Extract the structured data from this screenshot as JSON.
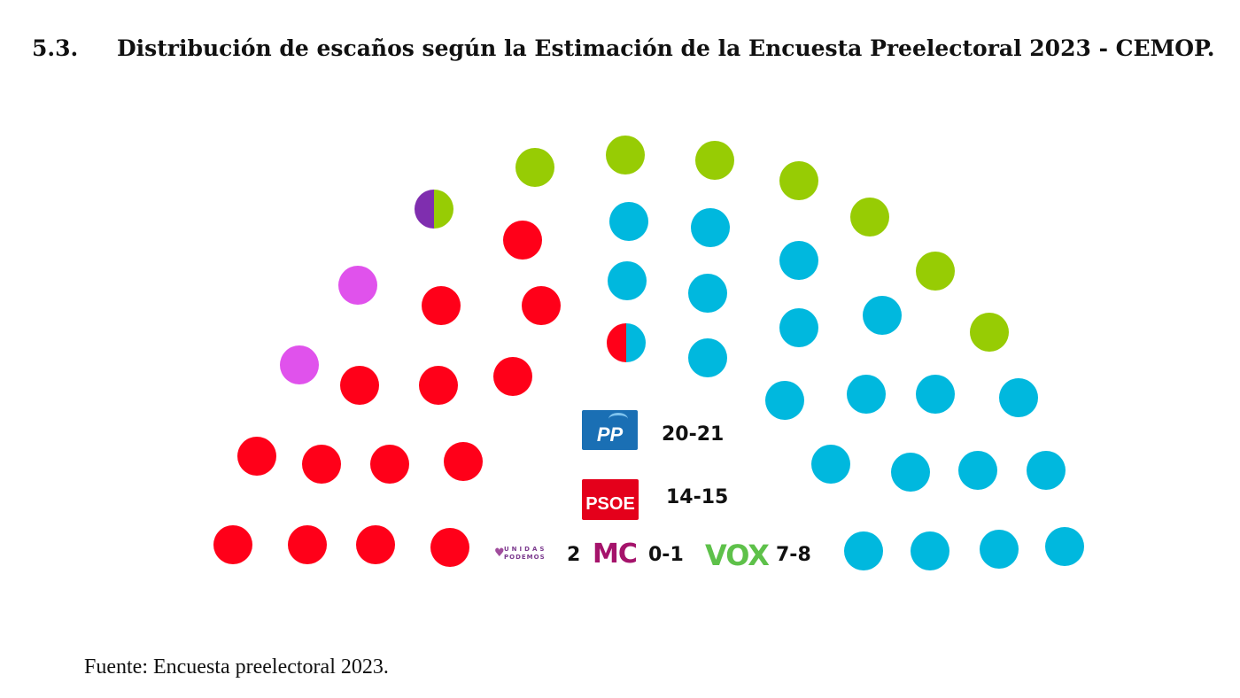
{
  "heading": {
    "number": "5.3.",
    "title": "Distribución de escaños según la Estimación de la Encuesta Preelectoral 2023 - CEMOP."
  },
  "source": "Fuente: Encuesta preelectoral 2023.",
  "colors": {
    "pp": "#00b8de",
    "psoe": "#ff0019",
    "vox": "#97cc04",
    "podemos": "#e052ec",
    "mc": "#7f2eaf"
  },
  "chart_data": {
    "type": "parliament",
    "total_seats": 45,
    "parties": [
      {
        "label": "PSOE",
        "value": "14-15"
      },
      {
        "label": "PP",
        "value": "20-21"
      },
      {
        "label": "UNIDAS PODEMOS",
        "value": "2"
      },
      {
        "label": "MC",
        "value": "0-1"
      },
      {
        "label": "VOX",
        "value": "7-8"
      }
    ],
    "seats": [
      {
        "party": "psoe"
      },
      {
        "party": "psoe"
      },
      {
        "party": "psoe"
      },
      {
        "party": "psoe"
      },
      {
        "party": "psoe"
      },
      {
        "party": "psoe"
      },
      {
        "party": "psoe"
      },
      {
        "party": "psoe"
      },
      {
        "party": "podemos"
      },
      {
        "party": "psoe"
      },
      {
        "party": "psoe"
      },
      {
        "party": "psoe"
      },
      {
        "party": "podemos"
      },
      {
        "party": "psoe"
      },
      {
        "party": "psoe"
      },
      {
        "party": "mc",
        "split": "vox"
      },
      {
        "party": "psoe"
      },
      {
        "party": "vox"
      },
      {
        "party": "vox"
      },
      {
        "party": "vox"
      },
      {
        "party": "pp"
      },
      {
        "party": "pp"
      },
      {
        "party": "pp"
      },
      {
        "party": "pp"
      },
      {
        "party": "psoe",
        "split": "pp"
      },
      {
        "party": "pp"
      },
      {
        "party": "vox"
      },
      {
        "party": "pp"
      },
      {
        "party": "pp"
      },
      {
        "party": "vox"
      },
      {
        "party": "pp"
      },
      {
        "party": "pp"
      },
      {
        "party": "vox"
      },
      {
        "party": "pp"
      },
      {
        "party": "pp"
      },
      {
        "party": "pp"
      },
      {
        "party": "vox"
      },
      {
        "party": "pp"
      },
      {
        "party": "pp"
      },
      {
        "party": "pp"
      },
      {
        "party": "pp"
      },
      {
        "party": "pp"
      },
      {
        "party": "pp"
      },
      {
        "party": "pp"
      },
      {
        "party": "pp"
      }
    ]
  },
  "legend": {
    "pp_logo": "PP",
    "pp_value": "20-21",
    "psoe_logo": "PSOE",
    "psoe_value": "14-15",
    "podemos_logo_line1": "UNIDAS",
    "podemos_logo_line2": "PODEMOS",
    "podemos_value": "2",
    "mc_logo": "MC",
    "mc_value": "0-1",
    "vox_logo": "VOX",
    "vox_value": "7-8"
  }
}
